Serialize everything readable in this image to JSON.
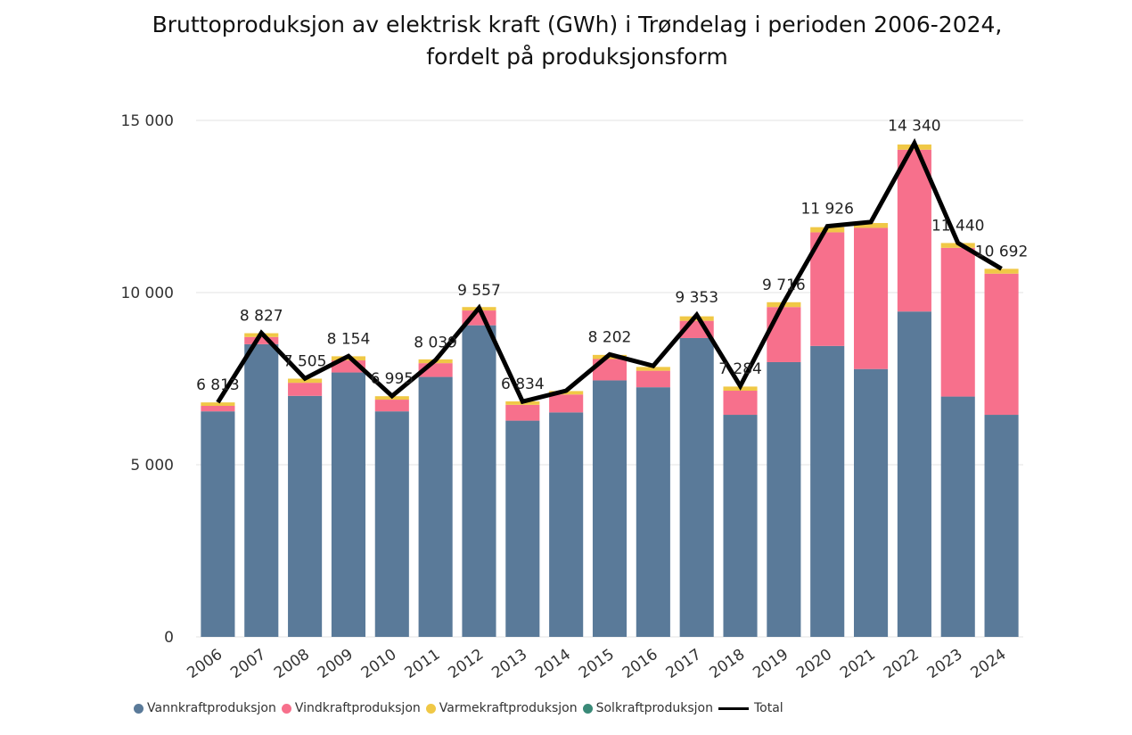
{
  "title": {
    "line1": "Bruttoproduksjon av elektrisk kraft (GWh) i Trøndelag i perioden 2006-2024,",
    "line2": "fordelt på produksjonsform"
  },
  "legend": [
    {
      "label": "Vannkraftproduksjon",
      "kind": "dot",
      "color": "#5a7a99"
    },
    {
      "label": "Vindkraftproduksjon",
      "kind": "dot",
      "color": "#f7708c"
    },
    {
      "label": "Varmekraftproduksjon",
      "kind": "dot",
      "color": "#f0c846"
    },
    {
      "label": "Solkraftproduksjon",
      "kind": "dot",
      "color": "#3a8a78"
    },
    {
      "label": "Total",
      "kind": "line",
      "color": "#000000"
    }
  ],
  "chart_data": {
    "type": "bar",
    "stacked": true,
    "categories": [
      "2006",
      "2007",
      "2008",
      "2009",
      "2010",
      "2011",
      "2012",
      "2013",
      "2014",
      "2015",
      "2016",
      "2017",
      "2018",
      "2019",
      "2020",
      "2021",
      "2022",
      "2023",
      "2024"
    ],
    "ylim": [
      0,
      15000
    ],
    "yticks": [
      0,
      5000,
      10000,
      15000
    ],
    "ytick_labels": [
      "0",
      "5 000",
      "10 000",
      "15 000"
    ],
    "grid": true,
    "series": [
      {
        "name": "Vannkraftproduksjon",
        "color": "#5a7a99",
        "values": [
          6550,
          8500,
          7000,
          7680,
          6550,
          7550,
          9050,
          6280,
          6520,
          7450,
          7250,
          8680,
          6450,
          7980,
          8450,
          7780,
          9450,
          6980,
          6450
        ]
      },
      {
        "name": "Vindkraftproduksjon",
        "color": "#f7708c",
        "values": [
          160,
          210,
          380,
          350,
          340,
          400,
          430,
          460,
          520,
          620,
          480,
          500,
          700,
          1600,
          3300,
          4100,
          4700,
          4320,
          4100
        ]
      },
      {
        "name": "Varmekraftproduksjon",
        "color": "#f0c846",
        "values": [
          100,
          110,
          120,
          120,
          100,
          110,
          100,
          100,
          100,
          120,
          110,
          130,
          120,
          140,
          150,
          140,
          150,
          140,
          140
        ]
      },
      {
        "name": "Solkraftproduksjon",
        "color": "#3a8a78",
        "values": [
          0,
          0,
          0,
          0,
          0,
          0,
          0,
          0,
          0,
          0,
          0,
          0,
          0,
          0,
          0,
          0,
          0,
          0,
          0
        ]
      }
    ],
    "total": {
      "name": "Total",
      "color": "#000000",
      "values": [
        6813,
        8827,
        7505,
        8154,
        6995,
        8039,
        9557,
        6834,
        7150,
        8202,
        7870,
        9353,
        7284,
        9716,
        11926,
        12050,
        14340,
        11440,
        10692
      ]
    },
    "data_labels": [
      {
        "index": 0,
        "text": "6 813"
      },
      {
        "index": 1,
        "text": "8 827"
      },
      {
        "index": 2,
        "text": "7 505"
      },
      {
        "index": 3,
        "text": "8 154"
      },
      {
        "index": 4,
        "text": "6 995"
      },
      {
        "index": 5,
        "text": "8 039"
      },
      {
        "index": 6,
        "text": "9 557"
      },
      {
        "index": 7,
        "text": "6 834"
      },
      {
        "index": 9,
        "text": "8 202"
      },
      {
        "index": 11,
        "text": "9 353"
      },
      {
        "index": 12,
        "text": "7 284"
      },
      {
        "index": 13,
        "text": "9 716"
      },
      {
        "index": 14,
        "text": "11 926"
      },
      {
        "index": 16,
        "text": "14 340"
      },
      {
        "index": 17,
        "text": "11 440"
      },
      {
        "index": 18,
        "text": "10 692"
      }
    ]
  }
}
